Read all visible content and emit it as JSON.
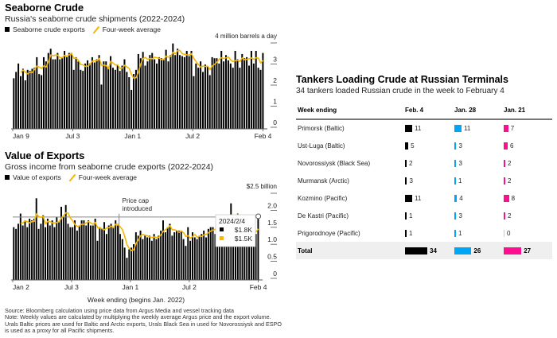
{
  "chart_data": [
    {
      "type": "bar",
      "title": "Seaborne Crude",
      "subtitle": "Russia's seaborne crude shipments (2022-2024)",
      "unit_label": "4 million barrels a day",
      "legend": [
        "Seaborne crude exports",
        "Four-week average"
      ],
      "xlabel": "",
      "ylabel": "million barrels a day",
      "ylim": [
        0,
        4
      ],
      "yticks": [
        "0",
        "1",
        "2",
        "3"
      ],
      "xticks": [
        "Jan 9",
        "Jul 3",
        "Jan 1",
        "Jul 2",
        "Feb 4"
      ],
      "series": [
        {
          "name": "Seaborne crude exports",
          "values": [
            2.4,
            2.7,
            3.1,
            2.5,
            2.85,
            2.3,
            2.8,
            2.75,
            2.85,
            2.9,
            3.4,
            2.6,
            2.55,
            3.4,
            3.2,
            3.6,
            3.8,
            3.3,
            3.3,
            3.6,
            3.3,
            3.35,
            3.7,
            3.4,
            3.6,
            3.6,
            2.8,
            3.4,
            3.2,
            2.8,
            2.75,
            3.1,
            3.25,
            3.1,
            3.4,
            3.15,
            3.3,
            3.5,
            2.1,
            3.2,
            3.2,
            2.95,
            3.45,
            2.9,
            2.8,
            3.0,
            2.75,
            3.0,
            3.3,
            2.7,
            2.45,
            1.85,
            2.6,
            2.8,
            3.55,
            3.35,
            3.65,
            3.0,
            3.2,
            3.5,
            3.6,
            3.3,
            3.1,
            3.4,
            3.35,
            3.3,
            3.75,
            3.2,
            3.5,
            4.05,
            3.5,
            3.8,
            3.5,
            3.45,
            3.4,
            3.7,
            3.45,
            3.7,
            2.5,
            3.1,
            2.9,
            3.2,
            2.7,
            3.05,
            2.95,
            2.55,
            3.4,
            3.35,
            3.35,
            3.1,
            3.7,
            3.2,
            3.5,
            3.25,
            3.1,
            2.9,
            3.7,
            3.3,
            2.9,
            3.55,
            3.35,
            3.4,
            3.0,
            3.7,
            3.1,
            3.7,
            2.9,
            2.8,
            3.6
          ]
        }
      ]
    },
    {
      "type": "bar",
      "title": "Value of Exports",
      "subtitle": "Gross income from seaborne crude exports (2022-2024)",
      "unit_label": "$2.5 billion",
      "legend": [
        "Value of exports",
        "Four-week average"
      ],
      "xlabel": "Week ending (begins Jan. 2022)",
      "ylabel": "$ billion",
      "ylim": [
        0,
        2.5
      ],
      "yticks": [
        "0",
        "0.5",
        "1.0",
        "1.5",
        "2.0"
      ],
      "xticks": [
        "Jan 2",
        "Jul 3",
        "Jan 1",
        "Jul 2",
        "Feb 4"
      ],
      "annotation": {
        "label_line1": "Price cap",
        "label_line2": "introduced",
        "reference_value": 1.85
      },
      "tooltip": {
        "date": "2024/2/4",
        "value": "$1.8K",
        "average": "$1.5K"
      },
      "series": [
        {
          "name": "Value of exports",
          "values": [
            1.55,
            1.5,
            1.65,
            1.95,
            1.6,
            1.75,
            1.55,
            1.8,
            1.75,
            1.8,
            2.4,
            1.5,
            1.65,
            1.9,
            1.55,
            1.8,
            1.6,
            1.75,
            1.55,
            1.85,
            1.7,
            2.15,
            1.85,
            2.2,
            1.65,
            1.55,
            1.55,
            1.75,
            1.45,
            1.6,
            1.75,
            1.75,
            1.6,
            1.75,
            1.6,
            1.6,
            1.8,
            1.15,
            1.55,
            1.5,
            1.7,
            1.35,
            1.6,
            1.65,
            1.55,
            1.75,
            1.6,
            1.35,
            1.2,
            0.95,
            0.65,
            0.9,
            0.95,
            1.05,
            1.4,
            1.3,
            1.45,
            1.2,
            1.3,
            1.25,
            1.3,
            1.15,
            1.35,
            1.2,
            1.3,
            1.45,
            1.75,
            1.4,
            1.55,
            1.65,
            1.3,
            1.4,
            1.45,
            1.45,
            1.45,
            1.2,
            1.0,
            1.55,
            1.15,
            1.4,
            1.25,
            1.2,
            1.3,
            1.35,
            1.45,
            1.25,
            1.5,
            1.55,
            1.55,
            1.35,
            1.8,
            1.75,
            1.85,
            1.7,
            1.75,
            1.5,
            2.25,
            1.7,
            1.75,
            1.95,
            1.5,
            1.6,
            1.55,
            1.5,
            1.45,
            1.35,
            1.5,
            1.35,
            1.8
          ]
        }
      ]
    }
  ],
  "table": {
    "title": "Tankers Loading Crude at Russian Terminals",
    "subtitle": "34 tankers loaded Russian crude in the week to February 4",
    "columns": [
      "Week ending",
      "Feb. 4",
      "Jan. 28",
      "Jan. 21"
    ],
    "colors": [
      "#000000",
      "#00a6f5",
      "#ff0f8f"
    ],
    "rows": [
      {
        "name": "Primorsk (Baltic)",
        "values": [
          11,
          11,
          7
        ]
      },
      {
        "name": "Ust-Luga (Baltic)",
        "values": [
          5,
          3,
          6
        ]
      },
      {
        "name": "Novorossiysk (Black Sea)",
        "values": [
          2,
          3,
          2
        ]
      },
      {
        "name": "Murmansk (Arctic)",
        "values": [
          3,
          1,
          2
        ]
      },
      {
        "name": "Kozmino (Pacific)",
        "values": [
          11,
          4,
          8
        ]
      },
      {
        "name": "De Kastri (Pacific)",
        "values": [
          1,
          3,
          2
        ]
      },
      {
        "name": "Prigorodnoye (Pacific)",
        "values": [
          1,
          1,
          0
        ]
      }
    ],
    "total": {
      "name": "Total",
      "values": [
        34,
        26,
        27
      ]
    }
  },
  "notes": {
    "source": "Source: Bloomberg calculation using price data from Argus Media and vessel tracking data",
    "note": "Note: Weekly values are calculated by multiplying the weekly average Argus price and the export volume. Urals Baltic prices are used for Baltic and Arctic exports, Urals Black Sea in used for Novorossiysk and ESPO is used as a proxy for all Pacific shipments."
  },
  "colors": {
    "bar": "#000000",
    "average": "#f5b800",
    "grid": "#999999"
  }
}
